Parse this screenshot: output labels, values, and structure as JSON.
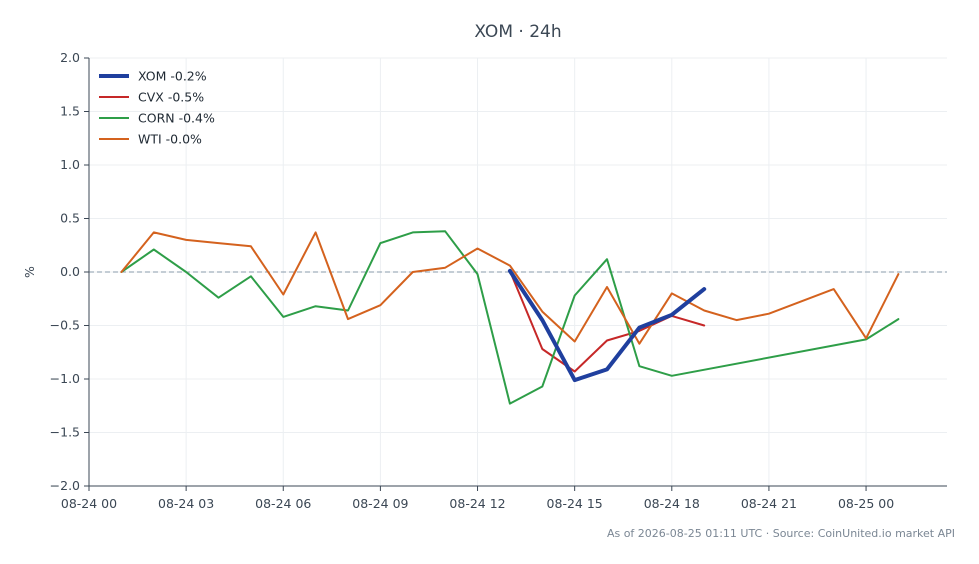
{
  "chart_data": {
    "type": "line",
    "title": "XOM · 24h",
    "ylabel": "%",
    "xlabel": "",
    "ylim": [
      -2.0,
      2.0
    ],
    "xlim": [
      0,
      26.5
    ],
    "y_ticks": [
      -2.0,
      -1.5,
      -1.0,
      -0.5,
      0.0,
      0.5,
      1.0,
      1.5,
      2.0
    ],
    "y_tick_labels": [
      "−2.0",
      "−1.5",
      "−1.0",
      "−0.5",
      "0.0",
      "0.5",
      "1.0",
      "1.5",
      "2.0"
    ],
    "x_ticks": [
      0,
      3,
      6,
      9,
      12,
      15,
      18,
      21,
      24
    ],
    "x_tick_labels": [
      "08-24 00",
      "08-24 03",
      "08-24 06",
      "08-24 09",
      "08-24 12",
      "08-24 15",
      "08-24 18",
      "08-24 21",
      "08-25 00"
    ],
    "zero_line": 0.0,
    "grid": true,
    "legend": "top-left",
    "series": [
      {
        "name": "XOM -0.2%",
        "color": "#1f3f9e",
        "width": 4,
        "x": [
          13,
          14,
          15,
          16,
          17,
          18,
          19
        ],
        "y": [
          0.01,
          -0.45,
          -1.01,
          -0.91,
          -0.52,
          -0.4,
          -0.16
        ]
      },
      {
        "name": "CVX -0.5%",
        "color": "#c62828",
        "width": 2,
        "x": [
          13,
          14,
          15,
          16,
          17,
          18,
          19
        ],
        "y": [
          0.01,
          -0.72,
          -0.93,
          -0.64,
          -0.55,
          -0.41,
          -0.5
        ]
      },
      {
        "name": "CORN -0.4%",
        "color": "#2e9e48",
        "width": 2,
        "x": [
          1,
          2,
          3,
          4,
          5,
          6,
          7,
          8,
          9,
          10,
          11,
          12,
          13,
          14,
          15,
          16,
          17,
          18,
          24,
          25
        ],
        "y": [
          0.0,
          0.21,
          0.0,
          -0.24,
          -0.04,
          -0.42,
          -0.32,
          -0.36,
          0.27,
          0.37,
          0.38,
          -0.02,
          -1.23,
          -1.07,
          -0.22,
          0.12,
          -0.88,
          -0.97,
          -0.63,
          -0.44
        ]
      },
      {
        "name": "WTI -0.0%",
        "color": "#d4621e",
        "width": 2,
        "x": [
          1,
          2,
          3,
          4,
          5,
          6,
          7,
          8,
          9,
          10,
          11,
          12,
          13,
          14,
          15,
          16,
          17,
          18,
          19,
          20,
          21,
          23,
          24,
          25
        ],
        "y": [
          0.0,
          0.37,
          0.3,
          0.27,
          0.24,
          -0.21,
          0.37,
          -0.44,
          -0.31,
          0.0,
          0.04,
          0.22,
          0.06,
          -0.37,
          -0.65,
          -0.14,
          -0.67,
          -0.2,
          -0.36,
          -0.45,
          -0.39,
          -0.16,
          -0.62,
          -0.02
        ]
      }
    ],
    "footer": "As of 2026-08-25 01:11 UTC · Source: CoinUnited.io market API"
  }
}
